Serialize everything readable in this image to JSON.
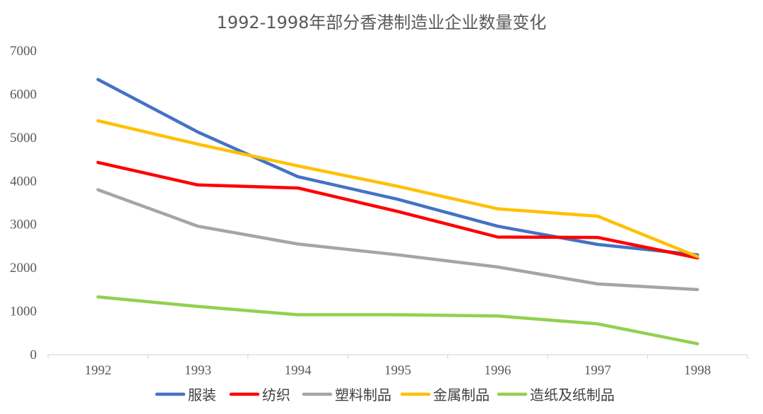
{
  "chart_data": {
    "type": "line",
    "title": "1992-1998年部分香港制造业企业数量变化",
    "xlabel": "",
    "ylabel": "",
    "ylim": [
      0,
      7000
    ],
    "yticks": [
      0,
      1000,
      2000,
      3000,
      4000,
      5000,
      6000,
      7000
    ],
    "grid": false,
    "legend_position": "bottom",
    "categories": [
      "1992",
      "1993",
      "1994",
      "1995",
      "1996",
      "1997",
      "1998"
    ],
    "series": [
      {
        "name": "服装",
        "color": "#4472C4",
        "values": [
          6340,
          5130,
          4100,
          3580,
          2960,
          2540,
          2300
        ]
      },
      {
        "name": "纺织",
        "color": "#FF0000",
        "values": [
          4430,
          3910,
          3840,
          3300,
          2710,
          2700,
          2230
        ]
      },
      {
        "name": "塑料制品",
        "color": "#A5A5A5",
        "values": [
          3800,
          2960,
          2550,
          2300,
          2020,
          1630,
          1500
        ]
      },
      {
        "name": "金属制品",
        "color": "#FFC000",
        "values": [
          5390,
          4850,
          4350,
          3880,
          3360,
          3190,
          2260
        ]
      },
      {
        "name": "造纸及纸制品",
        "color": "#92D050",
        "values": [
          1330,
          1110,
          920,
          920,
          890,
          710,
          250
        ]
      }
    ]
  }
}
